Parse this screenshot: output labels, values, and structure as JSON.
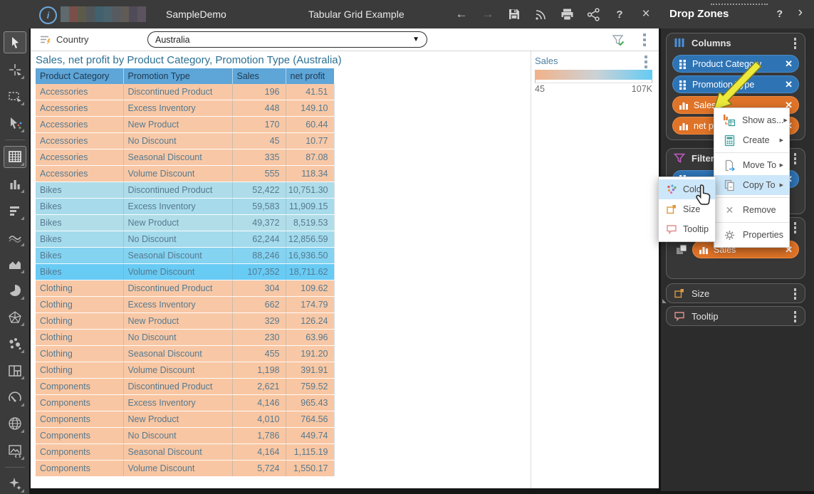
{
  "topbar": {
    "app_title": "SampleDemo",
    "doc_title": "Tabular Grid Example",
    "blur_colors": [
      "#5f6a6e",
      "#7b4f49",
      "#5e5a49",
      "#50565a",
      "#40616d",
      "#4b636d",
      "#565b61",
      "#605b57",
      "#504b59",
      "#5b535f"
    ],
    "back_icon": "←",
    "forward_icon": "→",
    "help_label": "?",
    "close_label": "×"
  },
  "panel_header": {
    "title": "Drop Zones",
    "help_label": "?",
    "collapse_label": "›"
  },
  "filter_bar": {
    "label": "Country",
    "value": "Australia",
    "dropdown_arrow": "▼"
  },
  "widget": {
    "title": "Sales, net profit by Product Category, Promotion Type (Australia)",
    "legend": {
      "title": "Sales",
      "min_label": "45",
      "max_label": "107K",
      "gradient_start": "#f2b289",
      "gradient_mid": "#ccd2d6",
      "gradient_end": "#63cbf4"
    }
  },
  "table": {
    "headers": [
      "Product Category",
      "Promotion Type",
      "Sales",
      "net profit"
    ],
    "header_bg": "#5ea5d8",
    "rows": [
      {
        "category": "Accessories",
        "promotion": "Discontinued Product",
        "sales": "196",
        "net_profit": "41.51",
        "color": "#f8c8a6"
      },
      {
        "category": "Accessories",
        "promotion": "Excess Inventory",
        "sales": "448",
        "net_profit": "149.10",
        "color": "#f8c8a6"
      },
      {
        "category": "Accessories",
        "promotion": "New Product",
        "sales": "170",
        "net_profit": "60.44",
        "color": "#f8c8a6"
      },
      {
        "category": "Accessories",
        "promotion": "No Discount",
        "sales": "45",
        "net_profit": "10.77",
        "color": "#f8c9a8"
      },
      {
        "category": "Accessories",
        "promotion": "Seasonal Discount",
        "sales": "335",
        "net_profit": "87.08",
        "color": "#f8c8a6"
      },
      {
        "category": "Accessories",
        "promotion": "Volume Discount",
        "sales": "555",
        "net_profit": "118.34",
        "color": "#f8c8a6"
      },
      {
        "category": "Bikes",
        "promotion": "Discontinued Product",
        "sales": "52,422",
        "net_profit": "10,751.30",
        "color": "#aedce9"
      },
      {
        "category": "Bikes",
        "promotion": "Excess Inventory",
        "sales": "59,583",
        "net_profit": "11,909.15",
        "color": "#a7dbeb"
      },
      {
        "category": "Bikes",
        "promotion": "New Product",
        "sales": "49,372",
        "net_profit": "8,519.53",
        "color": "#b1dde9"
      },
      {
        "category": "Bikes",
        "promotion": "No Discount",
        "sales": "62,244",
        "net_profit": "12,856.59",
        "color": "#a3daec"
      },
      {
        "category": "Bikes",
        "promotion": "Seasonal Discount",
        "sales": "88,246",
        "net_profit": "16,936.50",
        "color": "#84d3f1"
      },
      {
        "category": "Bikes",
        "promotion": "Volume Discount",
        "sales": "107,352",
        "net_profit": "18,711.62",
        "color": "#68cbf4"
      },
      {
        "category": "Clothing",
        "promotion": "Discontinued Product",
        "sales": "304",
        "net_profit": "109.62",
        "color": "#f8c8a6"
      },
      {
        "category": "Clothing",
        "promotion": "Excess Inventory",
        "sales": "662",
        "net_profit": "174.79",
        "color": "#f8c8a6"
      },
      {
        "category": "Clothing",
        "promotion": "New Product",
        "sales": "329",
        "net_profit": "126.24",
        "color": "#f8c8a6"
      },
      {
        "category": "Clothing",
        "promotion": "No Discount",
        "sales": "230",
        "net_profit": "63.96",
        "color": "#f8c8a6"
      },
      {
        "category": "Clothing",
        "promotion": "Seasonal Discount",
        "sales": "455",
        "net_profit": "191.20",
        "color": "#f8c8a6"
      },
      {
        "category": "Clothing",
        "promotion": "Volume Discount",
        "sales": "1,198",
        "net_profit": "391.91",
        "color": "#f8c7a4"
      },
      {
        "category": "Components",
        "promotion": "Discontinued Product",
        "sales": "2,621",
        "net_profit": "759.52",
        "color": "#f8c6a2"
      },
      {
        "category": "Components",
        "promotion": "Excess Inventory",
        "sales": "4,146",
        "net_profit": "965.43",
        "color": "#f8c6a2"
      },
      {
        "category": "Components",
        "promotion": "New Product",
        "sales": "4,010",
        "net_profit": "764.56",
        "color": "#f8c6a2"
      },
      {
        "category": "Components",
        "promotion": "No Discount",
        "sales": "1,786",
        "net_profit": "449.74",
        "color": "#f8c6a2"
      },
      {
        "category": "Components",
        "promotion": "Seasonal Discount",
        "sales": "4,164",
        "net_profit": "1,115.19",
        "color": "#f8c6a2"
      },
      {
        "category": "Components",
        "promotion": "Volume Discount",
        "sales": "5,724",
        "net_profit": "1,550.17",
        "color": "#f8c6a2"
      }
    ]
  },
  "drop_zones": {
    "columns": {
      "label": "Columns",
      "chips": [
        {
          "label": "Product Category",
          "kind": "dimension"
        },
        {
          "label": "Promotion Type",
          "kind": "dimension"
        },
        {
          "label": "Sales",
          "kind": "measure"
        },
        {
          "label": "net profit",
          "kind": "measure"
        }
      ]
    },
    "filters": {
      "label": "Filters",
      "chips": [
        {
          "label": "",
          "kind": "dimension"
        }
      ]
    },
    "color_zone": {
      "label": "",
      "chips": [
        {
          "label": "Sales",
          "kind": "measure"
        }
      ]
    },
    "size": {
      "label": "Size"
    },
    "tooltip": {
      "label": "Tooltip"
    }
  },
  "context_menu": {
    "items": [
      {
        "label": "Show as...",
        "icon": "show-as-icon",
        "has_submenu": true
      },
      {
        "label": "Create",
        "icon": "create-icon",
        "has_submenu": true
      },
      {
        "label": "Move To",
        "icon": "move-to-icon",
        "has_submenu": true
      },
      {
        "label": "Copy To",
        "icon": "copy-to-icon",
        "has_submenu": true,
        "highlighted": true
      },
      {
        "label": "Remove",
        "icon": "remove-icon",
        "has_submenu": false
      },
      {
        "label": "Properties",
        "icon": "properties-icon",
        "has_submenu": false
      }
    ]
  },
  "submenu": {
    "items": [
      {
        "label": "Color",
        "icon": "color-icon",
        "highlighted": true
      },
      {
        "label": "Size",
        "icon": "size-icon"
      },
      {
        "label": "Tooltip",
        "icon": "tooltip-icon"
      }
    ]
  },
  "sidebar_tools": [
    "select",
    "point-select",
    "rectangular-select",
    "multi-select",
    "grid",
    "column-chart",
    "bar-chart",
    "line-chart",
    "area-chart",
    "pie-chart",
    "polar-chart",
    "scatter-chart",
    "treemap",
    "gauge",
    "map",
    "image-widget",
    "ai-assist"
  ],
  "colors": {
    "chip_dimension": "#2e74b5",
    "chip_measure": "#df7327",
    "table_header": "#5ea5d8",
    "menu_highlight": "#cde7fa",
    "annotation_arrow": "#ece93b",
    "title_text": "#2c7093"
  }
}
